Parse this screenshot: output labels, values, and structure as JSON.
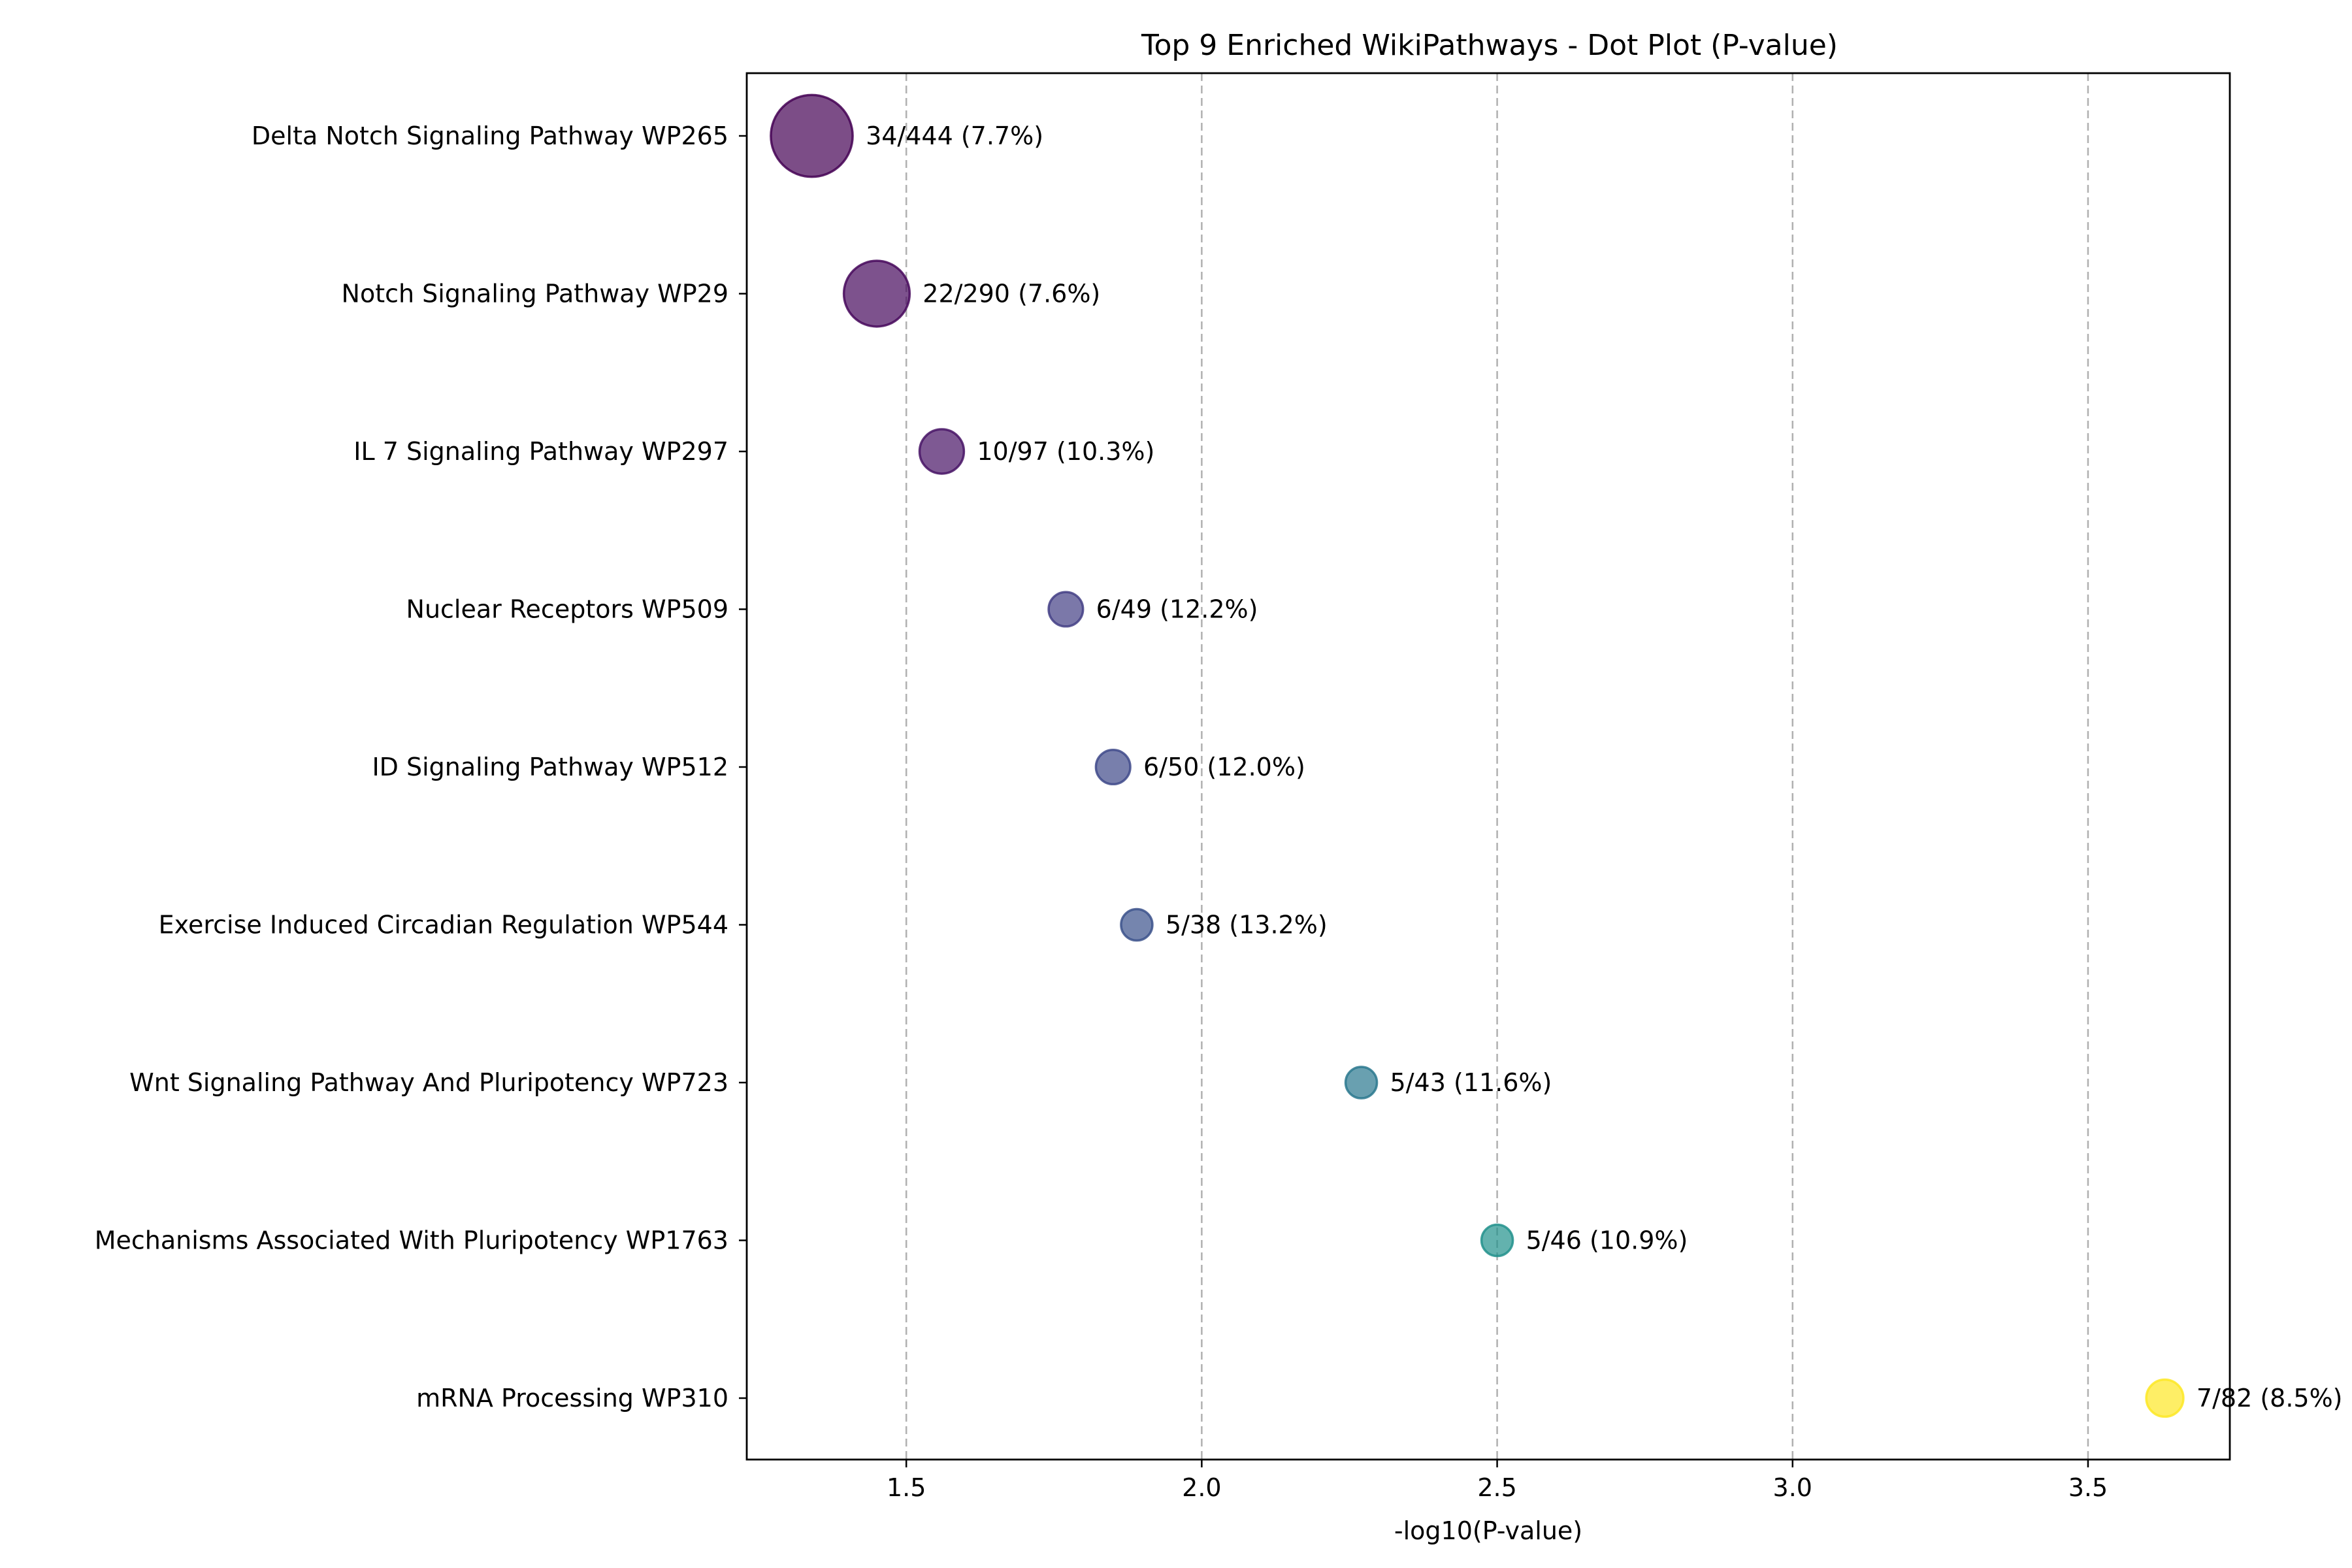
{
  "chart_data": {
    "type": "scatter",
    "title": "Top 9 Enriched WikiPathways - Dot Plot (P-value)",
    "xlabel": "-log10(P-value)",
    "ylabel": "",
    "xlim": [
      1.23,
      3.74
    ],
    "xticks": [
      "1.5",
      "2.0",
      "2.5",
      "3.0",
      "3.5"
    ],
    "grid": "x-dashed",
    "colormap": "viridis",
    "points": [
      {
        "pathway": "Delta Notch Signaling Pathway WP265",
        "x": 1.34,
        "count": 34,
        "label": "34/444 (7.7%)",
        "color": "#440154"
      },
      {
        "pathway": "Notch Signaling Pathway WP29",
        "x": 1.45,
        "count": 22,
        "label": "22/290 (7.6%)",
        "color": "#46085c"
      },
      {
        "pathway": "IL 7 Signaling Pathway WP297",
        "x": 1.56,
        "count": 10,
        "label": "10/97 (10.3%)",
        "color": "#471365"
      },
      {
        "pathway": "Nuclear Receptors WP509",
        "x": 1.77,
        "count": 6,
        "label": "6/49 (12.2%)",
        "color": "#433e85"
      },
      {
        "pathway": "ID Signaling Pathway WP512",
        "x": 1.85,
        "count": 6,
        "label": "6/50 (12.0%)",
        "color": "#3e4989"
      },
      {
        "pathway": "Exercise Induced Circadian Regulation WP544",
        "x": 1.89,
        "count": 5,
        "label": "5/38 (13.2%)",
        "color": "#3b518b"
      },
      {
        "pathway": "Wnt Signaling Pathway And Pluripotency WP723",
        "x": 2.27,
        "count": 5,
        "label": "5/43 (11.6%)",
        "color": "#2a788e"
      },
      {
        "pathway": "Mechanisms Associated With Pluripotency WP1763",
        "x": 2.5,
        "count": 5,
        "label": "5/46 (10.9%)",
        "color": "#21918c"
      },
      {
        "pathway": "mRNA Processing WP310",
        "x": 3.63,
        "count": 7,
        "label": "7/82 (8.5%)",
        "color": "#fde725"
      }
    ]
  }
}
